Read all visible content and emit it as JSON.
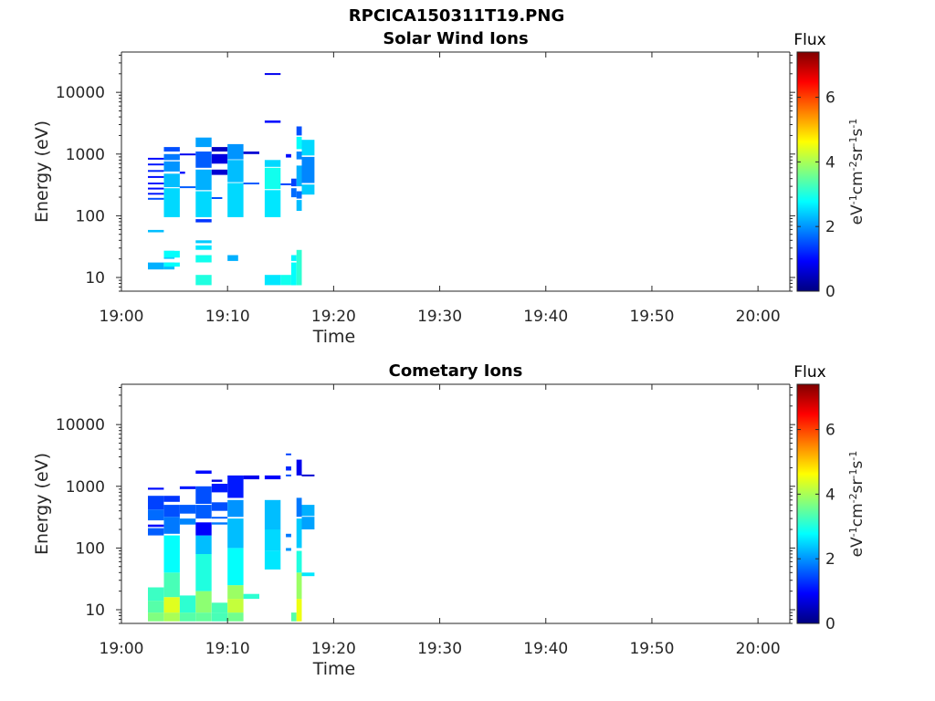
{
  "page_title": "RPCICA150311T19.PNG",
  "chart_data": [
    {
      "type": "heatmap",
      "title": "Solar Wind Ions",
      "xlabel": "Time",
      "ylabel": "Energy (eV)",
      "x_ticks": [
        "19:00",
        "19:10",
        "19:20",
        "19:30",
        "19:40",
        "19:50",
        "20:00"
      ],
      "y_scale": "log",
      "y_ticks": [
        "10",
        "100",
        "1000",
        "10000"
      ],
      "ylim": [
        6,
        45000
      ],
      "xlim": [
        "19:00",
        "20:03"
      ],
      "colorbar": {
        "title": "Flux",
        "label": "eV-1cm-2sr-1s-1",
        "ticks": [
          "0",
          "2",
          "4",
          "6"
        ],
        "range": [
          0,
          7.4
        ],
        "colormap": "jet"
      },
      "cell_columns": [
        "time_start_min",
        "time_end_min",
        "energy_low_eV",
        "energy_high_eV",
        "flux"
      ],
      "cells": [
        [
          2.5,
          4,
          13.5,
          17.5,
          2.2
        ],
        [
          2.5,
          4,
          54,
          59,
          2.3
        ],
        [
          2.5,
          4,
          185,
          195,
          1.5
        ],
        [
          2.5,
          4,
          220,
          235,
          1.1
        ],
        [
          2.5,
          4,
          270,
          285,
          1.0
        ],
        [
          2.5,
          4,
          330,
          345,
          1.1
        ],
        [
          2.5,
          4,
          420,
          440,
          1.0
        ],
        [
          2.5,
          4,
          520,
          550,
          1.2
        ],
        [
          2.5,
          4,
          660,
          700,
          1.1
        ],
        [
          2.5,
          4,
          830,
          870,
          1.0
        ],
        [
          4,
          5,
          13.5,
          17.5,
          2.3
        ],
        [
          4,
          5,
          20,
          27,
          2.3
        ],
        [
          4,
          5.5,
          15,
          17.5,
          2.8
        ],
        [
          4,
          5.5,
          21,
          27,
          2.8
        ],
        [
          4,
          5.5,
          95,
          280,
          2.5
        ],
        [
          4,
          5.5,
          290,
          480,
          2.3
        ],
        [
          4,
          5.5,
          520,
          760,
          2.0
        ],
        [
          4,
          5.5,
          800,
          1000,
          1.8
        ],
        [
          4,
          5.5,
          1100,
          1300,
          1.5
        ],
        [
          5.5,
          6,
          480,
          520,
          1.0
        ],
        [
          5.5,
          7,
          280,
          300,
          1.6
        ],
        [
          5.5,
          7,
          960,
          1020,
          0.8
        ],
        [
          7,
          8.5,
          7.5,
          11,
          3.0
        ],
        [
          7,
          8.5,
          17.5,
          23,
          2.9
        ],
        [
          7,
          8.5,
          28,
          33,
          2.6
        ],
        [
          7,
          8.5,
          36,
          40,
          2.4
        ],
        [
          7,
          8.5,
          78,
          88,
          1.3
        ],
        [
          7,
          8.5,
          95,
          250,
          2.5
        ],
        [
          7,
          8.5,
          260,
          560,
          2.2
        ],
        [
          7,
          8.5,
          600,
          1100,
          1.6
        ],
        [
          7,
          8.5,
          1300,
          1850,
          2.1
        ],
        [
          8.5,
          10,
          460,
          560,
          0.6
        ],
        [
          8.5,
          10,
          700,
          1000,
          0.7
        ],
        [
          8.5,
          10,
          1100,
          1300,
          0.5
        ],
        [
          8.5,
          9.5,
          190,
          200,
          1.5
        ],
        [
          10,
          11,
          18.5,
          23,
          2.2
        ],
        [
          10,
          11.5,
          95,
          340,
          2.5
        ],
        [
          10,
          11.5,
          350,
          800,
          2.3
        ],
        [
          10,
          11.5,
          820,
          1450,
          2.0
        ],
        [
          11.5,
          13,
          1000,
          1100,
          0.6
        ],
        [
          11.5,
          13,
          330,
          345,
          1.6
        ],
        [
          13.5,
          15,
          7.5,
          11,
          2.6
        ],
        [
          13.5,
          15,
          95,
          260,
          2.6
        ],
        [
          13.5,
          15,
          270,
          600,
          2.9
        ],
        [
          13.5,
          15,
          620,
          800,
          2.5
        ],
        [
          13.5,
          15,
          3200,
          3500,
          1.0
        ],
        [
          13.5,
          15,
          19500,
          20500,
          0.8
        ],
        [
          15,
          16,
          7.5,
          11,
          2.9
        ],
        [
          15,
          16,
          320,
          335,
          1.4
        ],
        [
          15.5,
          16,
          880,
          1000,
          1.0
        ],
        [
          16,
          16.5,
          7.5,
          17.5,
          2.8
        ],
        [
          16,
          16.5,
          18.5,
          23,
          2.7
        ],
        [
          16,
          16.5,
          200,
          280,
          1.7
        ],
        [
          16,
          16.5,
          300,
          400,
          1.4
        ],
        [
          16.5,
          17,
          7.5,
          28,
          3.1
        ],
        [
          16.5,
          17,
          120,
          180,
          2.3
        ],
        [
          16.5,
          17,
          190,
          250,
          1.7
        ],
        [
          16.5,
          17,
          300,
          650,
          2.2
        ],
        [
          16.5,
          17,
          820,
          1100,
          1.9
        ],
        [
          16.5,
          17,
          1200,
          1900,
          2.8
        ],
        [
          16.5,
          17,
          2000,
          2800,
          1.5
        ],
        [
          17,
          18.2,
          220,
          320,
          2.4
        ],
        [
          17,
          18.2,
          340,
          900,
          1.9
        ],
        [
          17,
          18.2,
          950,
          1700,
          2.5
        ]
      ]
    },
    {
      "type": "heatmap",
      "title": "Cometary Ions",
      "xlabel": "Time",
      "ylabel": "Energy (eV)",
      "x_ticks": [
        "19:00",
        "19:10",
        "19:20",
        "19:30",
        "19:40",
        "19:50",
        "20:00"
      ],
      "y_scale": "log",
      "y_ticks": [
        "10",
        "100",
        "1000",
        "10000"
      ],
      "ylim": [
        6,
        45000
      ],
      "xlim": [
        "19:00",
        "20:03"
      ],
      "colorbar": {
        "title": "Flux",
        "label": "eV-1cm-2sr-1s-1",
        "ticks": [
          "0",
          "2",
          "4",
          "6"
        ],
        "range": [
          0,
          7.4
        ],
        "colormap": "jet"
      },
      "cell_columns": [
        "time_start_min",
        "time_end_min",
        "energy_low_eV",
        "energy_high_eV",
        "flux"
      ],
      "cells": [
        [
          2.5,
          4,
          6.5,
          9,
          3.7
        ],
        [
          2.5,
          4,
          9,
          14,
          3.4
        ],
        [
          2.5,
          4,
          14,
          23,
          3.2
        ],
        [
          2.5,
          4,
          160,
          210,
          1.6
        ],
        [
          2.5,
          4,
          220,
          240,
          1.0
        ],
        [
          2.5,
          4,
          280,
          420,
          1.7
        ],
        [
          2.5,
          4,
          420,
          700,
          1.4
        ],
        [
          2.5,
          4,
          880,
          950,
          1.0
        ],
        [
          4,
          5.5,
          6.5,
          9,
          4.0
        ],
        [
          4,
          5.5,
          9,
          16,
          4.4
        ],
        [
          4,
          5.5,
          16,
          40,
          3.3
        ],
        [
          4,
          5.5,
          40,
          160,
          2.8
        ],
        [
          4,
          5.5,
          170,
          320,
          1.8
        ],
        [
          4,
          5.5,
          320,
          500,
          1.5
        ],
        [
          4,
          5.5,
          560,
          700,
          1.3
        ],
        [
          5.5,
          7,
          6.5,
          9,
          3.4
        ],
        [
          5.5,
          7,
          9,
          17,
          3.1
        ],
        [
          5.5,
          7,
          240,
          300,
          1.9
        ],
        [
          5.5,
          7,
          360,
          500,
          1.6
        ],
        [
          5.5,
          7,
          900,
          1000,
          1.1
        ],
        [
          7,
          8.5,
          6.5,
          9,
          3.5
        ],
        [
          7,
          8.5,
          9,
          20,
          3.8
        ],
        [
          7,
          8.5,
          20,
          80,
          3.0
        ],
        [
          7,
          8.5,
          80,
          160,
          2.3
        ],
        [
          7,
          8.5,
          160,
          260,
          0.9
        ],
        [
          7,
          8.5,
          300,
          500,
          1.6
        ],
        [
          7,
          8.5,
          520,
          1000,
          1.5
        ],
        [
          7,
          8.5,
          1600,
          1800,
          1.0
        ],
        [
          8.5,
          10,
          6.5,
          9,
          3.3
        ],
        [
          8.5,
          10,
          9,
          13,
          3.3
        ],
        [
          8.5,
          10,
          240,
          260,
          1.8
        ],
        [
          8.5,
          10,
          300,
          320,
          1.6
        ],
        [
          8.5,
          10,
          400,
          550,
          1.5
        ],
        [
          8.5,
          10,
          800,
          1100,
          1.1
        ],
        [
          8.5,
          9.5,
          1180,
          1280,
          0.7
        ],
        [
          10,
          11.5,
          6.5,
          9,
          3.6
        ],
        [
          10,
          11.5,
          9,
          15,
          4.2
        ],
        [
          10,
          11.5,
          15,
          25,
          3.9
        ],
        [
          10,
          11.5,
          25,
          100,
          2.8
        ],
        [
          10,
          11.5,
          100,
          300,
          2.3
        ],
        [
          10,
          11.5,
          320,
          600,
          2.0
        ],
        [
          10,
          11.5,
          650,
          1500,
          1.1
        ],
        [
          11.5,
          13,
          15,
          18,
          3.1
        ],
        [
          11.5,
          13,
          1300,
          1500,
          0.8
        ],
        [
          13.5,
          15,
          45,
          90,
          2.6
        ],
        [
          13.5,
          15,
          90,
          200,
          2.5
        ],
        [
          13.5,
          15,
          200,
          600,
          2.3
        ],
        [
          13.5,
          15,
          1300,
          1500,
          0.9
        ],
        [
          15.5,
          16,
          1800,
          2100,
          1.2
        ],
        [
          15.5,
          16,
          3200,
          3400,
          1.4
        ],
        [
          15.5,
          16,
          1450,
          1550,
          1.5
        ],
        [
          15.5,
          16,
          90,
          100,
          2.0
        ],
        [
          15.5,
          16,
          150,
          170,
          1.8
        ],
        [
          16,
          16.5,
          6.5,
          9,
          3.4
        ],
        [
          16.5,
          17,
          6.5,
          15,
          4.5
        ],
        [
          16.5,
          17,
          15,
          40,
          3.9
        ],
        [
          16.5,
          17,
          40,
          90,
          3.0
        ],
        [
          16.5,
          17,
          100,
          300,
          2.4
        ],
        [
          16.5,
          17,
          320,
          650,
          1.8
        ],
        [
          16.5,
          17,
          1500,
          2700,
          0.8
        ],
        [
          17,
          18.2,
          35,
          40,
          2.6
        ],
        [
          17,
          18.2,
          200,
          320,
          2.1
        ],
        [
          17,
          18.2,
          330,
          500,
          2.2
        ],
        [
          17,
          18.2,
          1450,
          1550,
          0.6
        ]
      ]
    }
  ]
}
